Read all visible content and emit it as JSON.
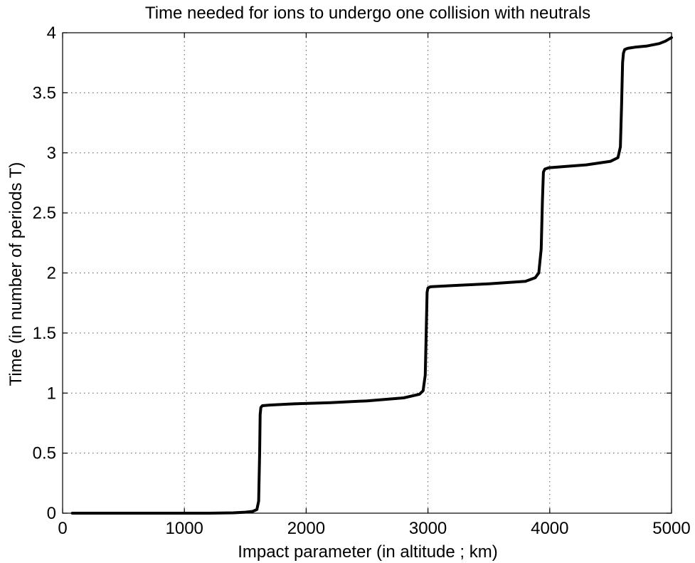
{
  "chart_data": {
    "type": "line",
    "title": "Time needed for ions to undergo one collision with neutrals",
    "xlabel": "Impact parameter (in altitude ; km)",
    "ylabel": "Time (in number of periods T)",
    "xlim": [
      0,
      5000
    ],
    "ylim": [
      0,
      4
    ],
    "x_ticks": [
      "0",
      "1000",
      "2000",
      "3000",
      "4000",
      "5000"
    ],
    "x_tick_values": [
      0,
      1000,
      2000,
      3000,
      4000,
      5000
    ],
    "y_ticks": [
      "0",
      "0.5",
      "1",
      "1.5",
      "2",
      "2.5",
      "3",
      "3.5",
      "4"
    ],
    "y_tick_values": [
      0,
      0.5,
      1,
      1.5,
      2,
      2.5,
      3,
      3.5,
      4
    ],
    "grid": true,
    "series": [
      {
        "color": "#000000",
        "x": [
          80,
          1200,
          1400,
          1500,
          1560,
          1595,
          1610,
          1618,
          1622,
          1628,
          1640,
          1700,
          1900,
          2200,
          2500,
          2800,
          2930,
          2960,
          2978,
          2988,
          2993,
          3000,
          3020,
          3200,
          3500,
          3800,
          3880,
          3910,
          3930,
          3940,
          3948,
          3960,
          3990,
          4100,
          4300,
          4500,
          4560,
          4580,
          4590,
          4598,
          4605,
          4615,
          4640,
          4700,
          4800,
          4900,
          4950,
          5000
        ],
        "y": [
          0,
          0,
          0.003,
          0.008,
          0.015,
          0.03,
          0.1,
          0.5,
          0.82,
          0.88,
          0.895,
          0.9,
          0.91,
          0.92,
          0.935,
          0.96,
          0.99,
          1.02,
          1.15,
          1.6,
          1.84,
          1.875,
          1.885,
          1.895,
          1.91,
          1.93,
          1.96,
          2.0,
          2.2,
          2.6,
          2.84,
          2.865,
          2.875,
          2.885,
          2.9,
          2.93,
          2.96,
          3.05,
          3.4,
          3.75,
          3.83,
          3.86,
          3.87,
          3.88,
          3.89,
          3.91,
          3.93,
          3.96
        ]
      }
    ]
  }
}
